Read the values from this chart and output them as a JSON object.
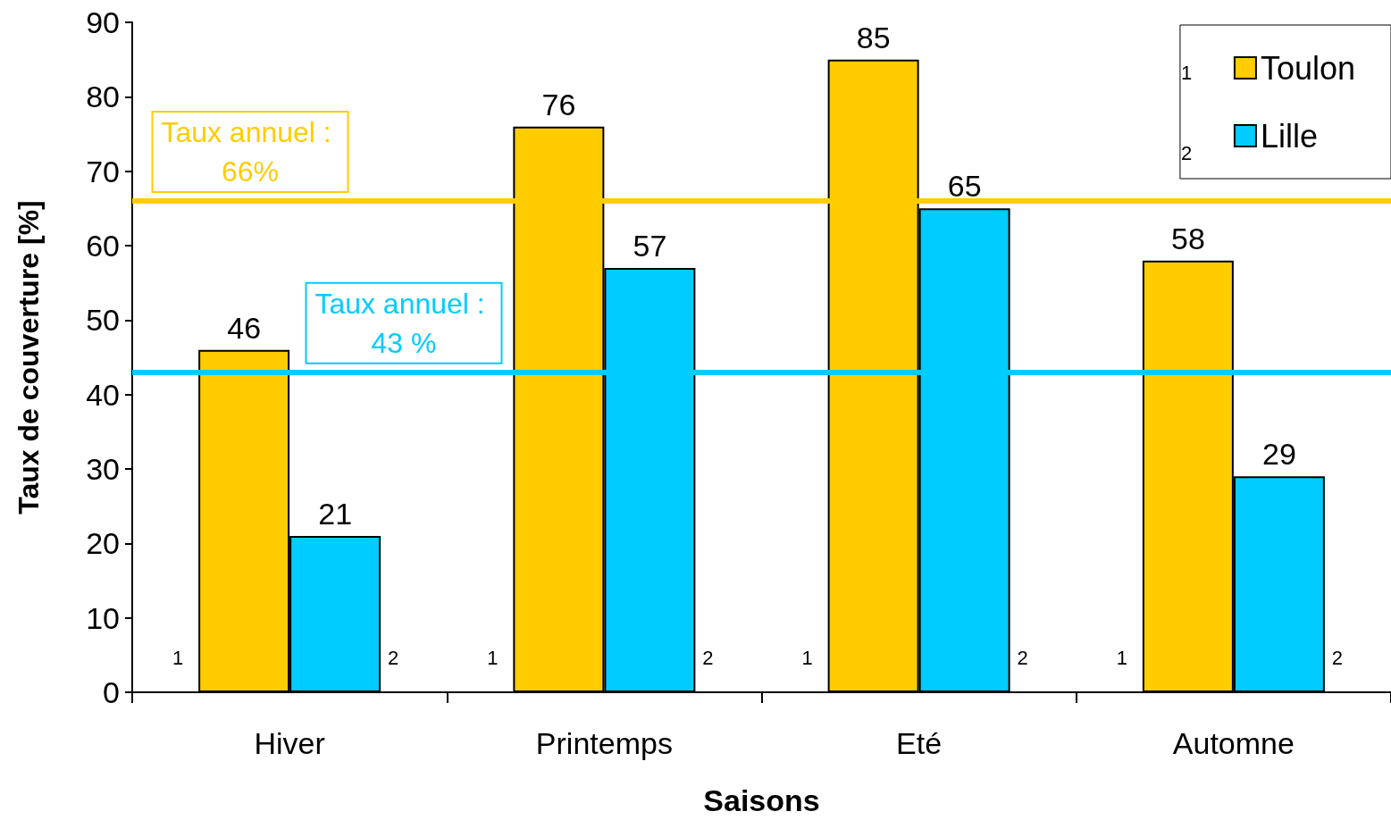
{
  "chart_data": {
    "type": "bar",
    "xlabel": "Saisons",
    "ylabel": "Taux de couverture [%]",
    "categories": [
      "Hiver",
      "Printemps",
      "Eté",
      "Automne"
    ],
    "series": [
      {
        "name": "Toulon",
        "color": "#ffcc00",
        "values": [
          46,
          76,
          85,
          58
        ]
      },
      {
        "name": "Lille",
        "color": "#00ccff",
        "values": [
          21,
          57,
          65,
          29
        ]
      }
    ],
    "ylim": [
      0,
      90
    ],
    "yticks": [
      0,
      10,
      20,
      30,
      40,
      50,
      60,
      70,
      80,
      90
    ],
    "grid": false,
    "legend": "top right",
    "data_labels": true,
    "ref_lines": [
      {
        "axis": "y",
        "value": 66,
        "label": "Taux annuel : 66%",
        "color": "#ffcc00",
        "line_style": "solid"
      },
      {
        "axis": "y",
        "value": 43,
        "label": "Taux annuel : 43 %",
        "color": "#00ccff",
        "line_style": "solid"
      }
    ],
    "annotations": [
      "1",
      "2",
      "1",
      "2",
      "1",
      "2",
      "1",
      "2",
      "1",
      "2"
    ]
  }
}
